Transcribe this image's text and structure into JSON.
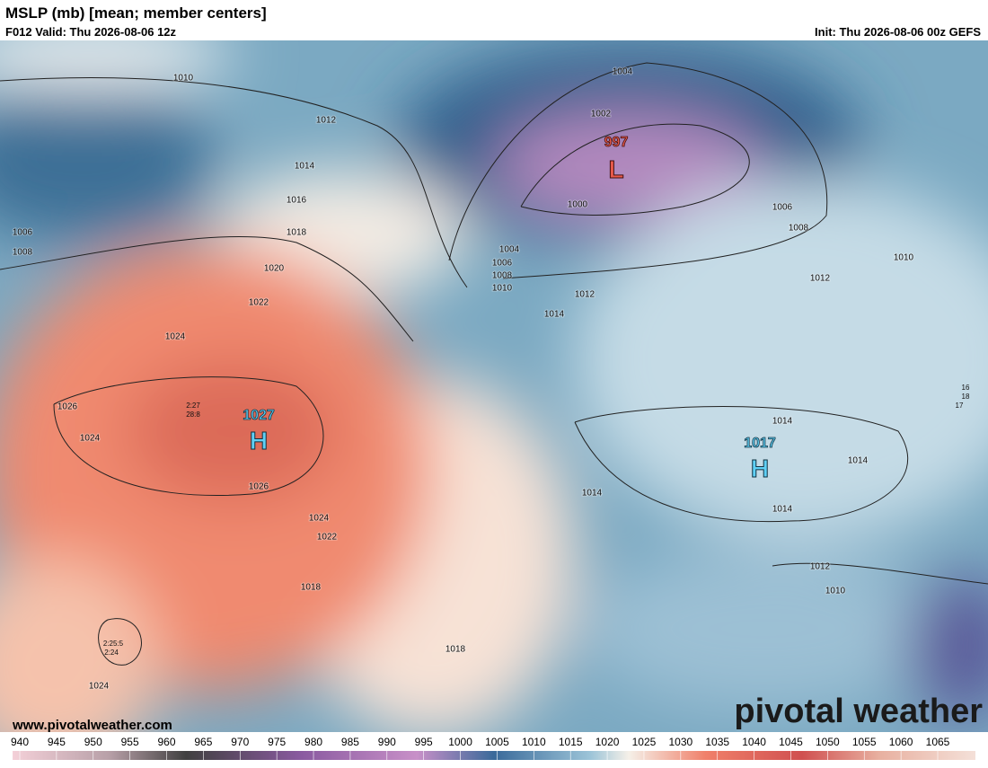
{
  "header": {
    "title": "MSLP (mb) [mean; member centers]",
    "valid": "F012 Valid: Thu 2026-08-06 12z",
    "init": "Init: Thu 2026-08-06 00z GEFS"
  },
  "map": {
    "contour_labels": [
      "1010",
      "1012",
      "1014",
      "1016",
      "1018",
      "1020",
      "1022",
      "1024",
      "1026",
      "1024",
      "1026",
      "1024",
      "1022",
      "1018",
      "1018",
      "1024",
      "1006",
      "1008",
      "1004",
      "1002",
      "1000",
      "1004",
      "1006",
      "1008",
      "1010",
      "1012",
      "1014",
      "1006",
      "1008",
      "1010",
      "1012",
      "1014",
      "1014",
      "1014",
      "1014",
      "1012",
      "1010"
    ],
    "highs": [
      {
        "value": "1027",
        "symbol": "H"
      },
      {
        "value": "1017",
        "symbol": "H"
      }
    ],
    "lows": [
      {
        "value": "997",
        "symbol": "L"
      }
    ],
    "member_labels": [
      "2:27",
      "28:8",
      "2:25:5",
      "2:24",
      "16",
      "18",
      "17"
    ]
  },
  "footer": {
    "website": "www.pivotalweather.com",
    "logo": "pivotal weather"
  },
  "colorbar": {
    "ticks": [
      940,
      945,
      950,
      955,
      960,
      965,
      970,
      975,
      980,
      985,
      990,
      995,
      1000,
      1005,
      1010,
      1015,
      1020,
      1025,
      1030,
      1035,
      1040,
      1045,
      1050,
      1055,
      1060,
      1065
    ]
  }
}
